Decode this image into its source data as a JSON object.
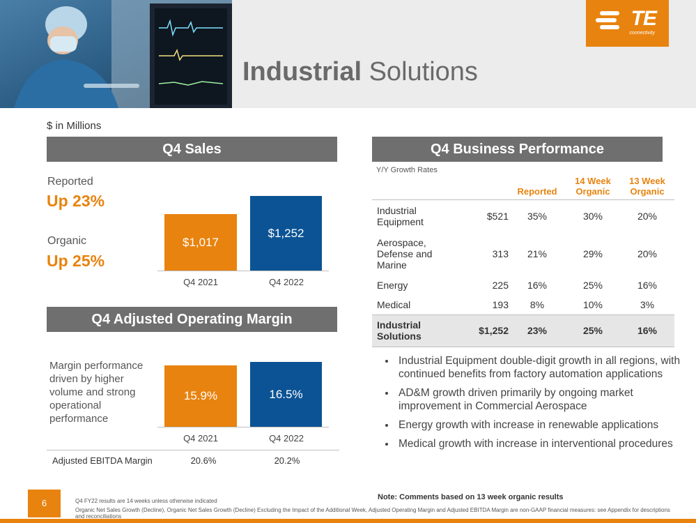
{
  "header": {
    "title_bold": "Industrial",
    "title_rest": " Solutions",
    "logo_text": "TE",
    "logo_sub": "connectivity"
  },
  "units": "$ in Millions",
  "sales": {
    "title": "Q4 Sales",
    "reported_label": "Reported",
    "reported_value": "Up 23%",
    "organic_label": "Organic",
    "organic_value": "Up 25%",
    "bars": [
      {
        "label": "$1,017",
        "category": "Q4 2021"
      },
      {
        "label": "$1,252",
        "category": "Q4 2022"
      }
    ]
  },
  "margin": {
    "title": "Q4 Adjusted Operating Margin",
    "description": "Margin performance driven by higher volume and strong operational performance",
    "bars": [
      {
        "label": "15.9%",
        "category": "Q4 2021"
      },
      {
        "label": "16.5%",
        "category": "Q4 2022"
      }
    ],
    "ebitda_label": "Adjusted EBITDA Margin",
    "ebitda_values": [
      "20.6%",
      "20.2%"
    ]
  },
  "chart_data": [
    {
      "type": "bar",
      "categories": [
        "Q4 2021",
        "Q4 2022"
      ],
      "values": [
        1017,
        1252
      ],
      "title": "Q4 Sales"
    },
    {
      "type": "bar",
      "categories": [
        "Q4 2021",
        "Q4 2022"
      ],
      "values": [
        15.9,
        16.5
      ],
      "title": "Q4 Adjusted Operating Margin"
    }
  ],
  "performance": {
    "title": "Q4 Business Performance",
    "subtitle": "Y/Y Growth Rates",
    "headers": [
      "Reported",
      "14 Week Organic",
      "13 Week Organic"
    ],
    "rows": [
      {
        "name": "Industrial Equipment",
        "sales": "$521",
        "reported": "35%",
        "w14": "30%",
        "w13": "20%"
      },
      {
        "name": "Aerospace, Defense and Marine",
        "sales": "313",
        "reported": "21%",
        "w14": "29%",
        "w13": "20%"
      },
      {
        "name": "Energy",
        "sales": "225",
        "reported": "16%",
        "w14": "25%",
        "w13": "16%"
      },
      {
        "name": "Medical",
        "sales": "193",
        "reported": "8%",
        "w14": "10%",
        "w13": "3%"
      }
    ],
    "total": {
      "name": "Industrial Solutions",
      "sales": "$1,252",
      "reported": "23%",
      "w14": "25%",
      "w13": "16%"
    }
  },
  "bullets": [
    "Industrial Equipment double-digit growth in all regions, with continued benefits from factory automation applications",
    "AD&M growth driven primarily by ongoing market improvement in Commercial Aerospace",
    "Energy growth with increase in renewable applications",
    "Medical growth with increase in interventional procedures"
  ],
  "note": "Note: Comments based on 13 week organic results",
  "footer": {
    "page_number": "6",
    "footnote1": "Q4 FY22 results are 14 weeks unless otherwise indicated",
    "footnote2": "Organic Net Sales Growth (Decline), Organic Net Sales Growth (Decline) Excluding the Impact of the Additional Week,  Adjusted Operating Margin and Adjusted EBITDA Margin are non-GAAP financial measures: see Appendix for descriptions and reconciliations"
  },
  "colors": {
    "accent": "#e8830f",
    "blue": "#0b5394",
    "bar_title": "#6f6f70"
  }
}
